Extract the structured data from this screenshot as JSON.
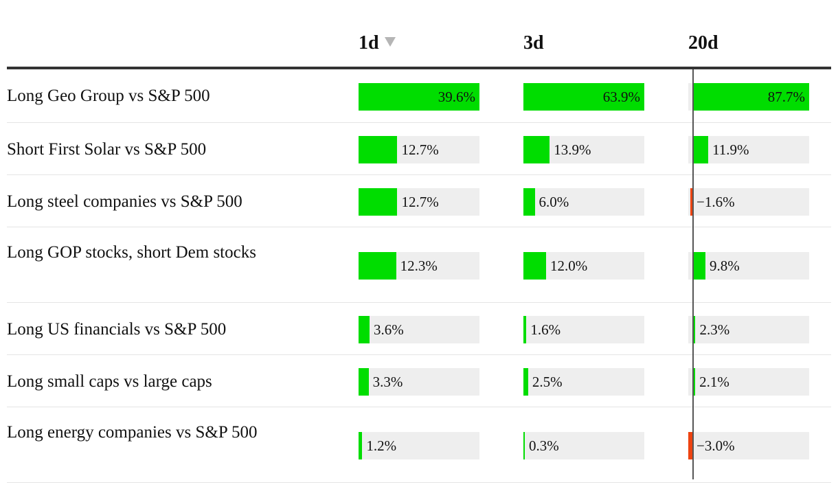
{
  "chart_data": {
    "type": "table",
    "columns": [
      {
        "key": "d1",
        "label": "1d",
        "sorted": true
      },
      {
        "key": "d3",
        "label": "3d"
      },
      {
        "key": "d20",
        "label": "20d"
      }
    ],
    "rows": [
      {
        "label": "Long Geo Group vs S&P 500",
        "values": [
          39.6,
          63.9,
          87.7
        ],
        "display": [
          "39.6%",
          "63.9%",
          "87.7%"
        ]
      },
      {
        "label": "Short First Solar vs S&P 500",
        "values": [
          12.7,
          13.9,
          11.9
        ],
        "display": [
          "12.7%",
          "13.9%",
          "11.9%"
        ]
      },
      {
        "label": "Long steel companies vs S&P 500",
        "values": [
          12.7,
          6.0,
          -1.6
        ],
        "display": [
          "12.7%",
          "6.0%",
          "−1.6%"
        ]
      },
      {
        "label": "Long GOP stocks, short Dem stocks",
        "values": [
          12.3,
          12.0,
          9.8
        ],
        "display": [
          "12.3%",
          "12.0%",
          "9.8%"
        ]
      },
      {
        "label": "Long US financials vs S&P 500",
        "values": [
          3.6,
          1.6,
          2.3
        ],
        "display": [
          "3.6%",
          "1.6%",
          "2.3%"
        ]
      },
      {
        "label": "Long small caps vs large caps",
        "values": [
          3.3,
          2.5,
          2.1
        ],
        "display": [
          "3.3%",
          "2.5%",
          "2.1%"
        ]
      },
      {
        "label": "Long energy companies vs S&P 500",
        "values": [
          1.2,
          0.3,
          -3.0
        ],
        "display": [
          "1.2%",
          "0.3%",
          "−3.0%"
        ]
      }
    ],
    "column_max": [
      39.6,
      63.9,
      87.7
    ],
    "colors": {
      "positive": "#00dd00",
      "negative": "#ee4411",
      "track": "#eeeeee"
    }
  }
}
